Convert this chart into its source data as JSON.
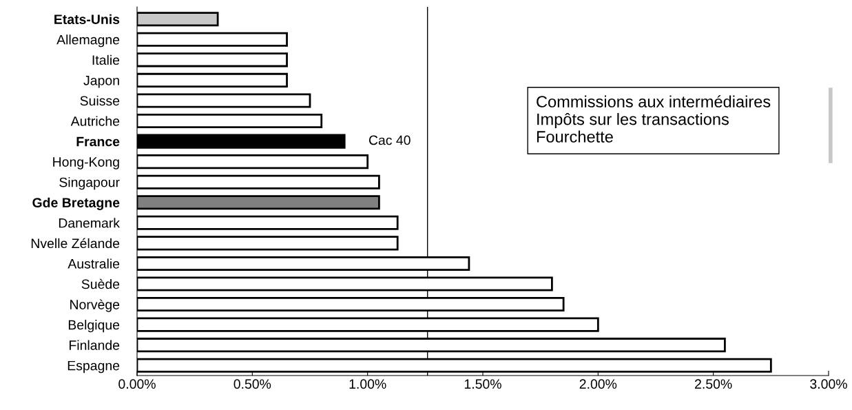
{
  "chart_data": {
    "type": "bar",
    "orientation": "horizontal",
    "categories": [
      "Etats-Unis",
      "Allemagne",
      "Italie",
      "Japon",
      "Suisse",
      "Autriche",
      "France",
      "Hong-Kong",
      "Singapour",
      "Gde Bretagne",
      "Danemark",
      "Nvelle Zélande",
      "Australie",
      "Suède",
      "Norvège",
      "Belgique",
      "Finlande",
      "Espagne"
    ],
    "values": [
      0.35,
      0.65,
      0.65,
      0.65,
      0.75,
      0.8,
      0.9,
      1.0,
      1.05,
      1.05,
      1.13,
      1.13,
      1.44,
      1.8,
      1.85,
      2.0,
      2.55,
      2.75
    ],
    "colors": [
      "#c8c8c8",
      "#ffffff",
      "#ffffff",
      "#ffffff",
      "#ffffff",
      "#ffffff",
      "#000000",
      "#ffffff",
      "#ffffff",
      "#808080",
      "#ffffff",
      "#ffffff",
      "#ffffff",
      "#ffffff",
      "#ffffff",
      "#ffffff",
      "#ffffff",
      "#ffffff"
    ],
    "xlim": [
      0,
      3
    ],
    "xticks": [
      {
        "value": 0,
        "label": "0.00%"
      },
      {
        "value": 0.5,
        "label": "0.50%"
      },
      {
        "value": 1,
        "label": "1.00%"
      },
      {
        "value": 1.5,
        "label": "1.50%"
      },
      {
        "value": 2,
        "label": "2.00%"
      },
      {
        "value": 2.5,
        "label": "2.50%"
      },
      {
        "value": 3,
        "label": "3.00%"
      }
    ],
    "ref_lines": [
      {
        "axis": "x",
        "value": 1.26,
        "color": "#000000"
      }
    ],
    "annotations": [
      {
        "text": "Cac 40",
        "x": 0.9,
        "y": "France"
      },
      "Commissions aux intermédiaires\nImpôts sur les transactions\nFourchette"
    ],
    "grid": false
  }
}
